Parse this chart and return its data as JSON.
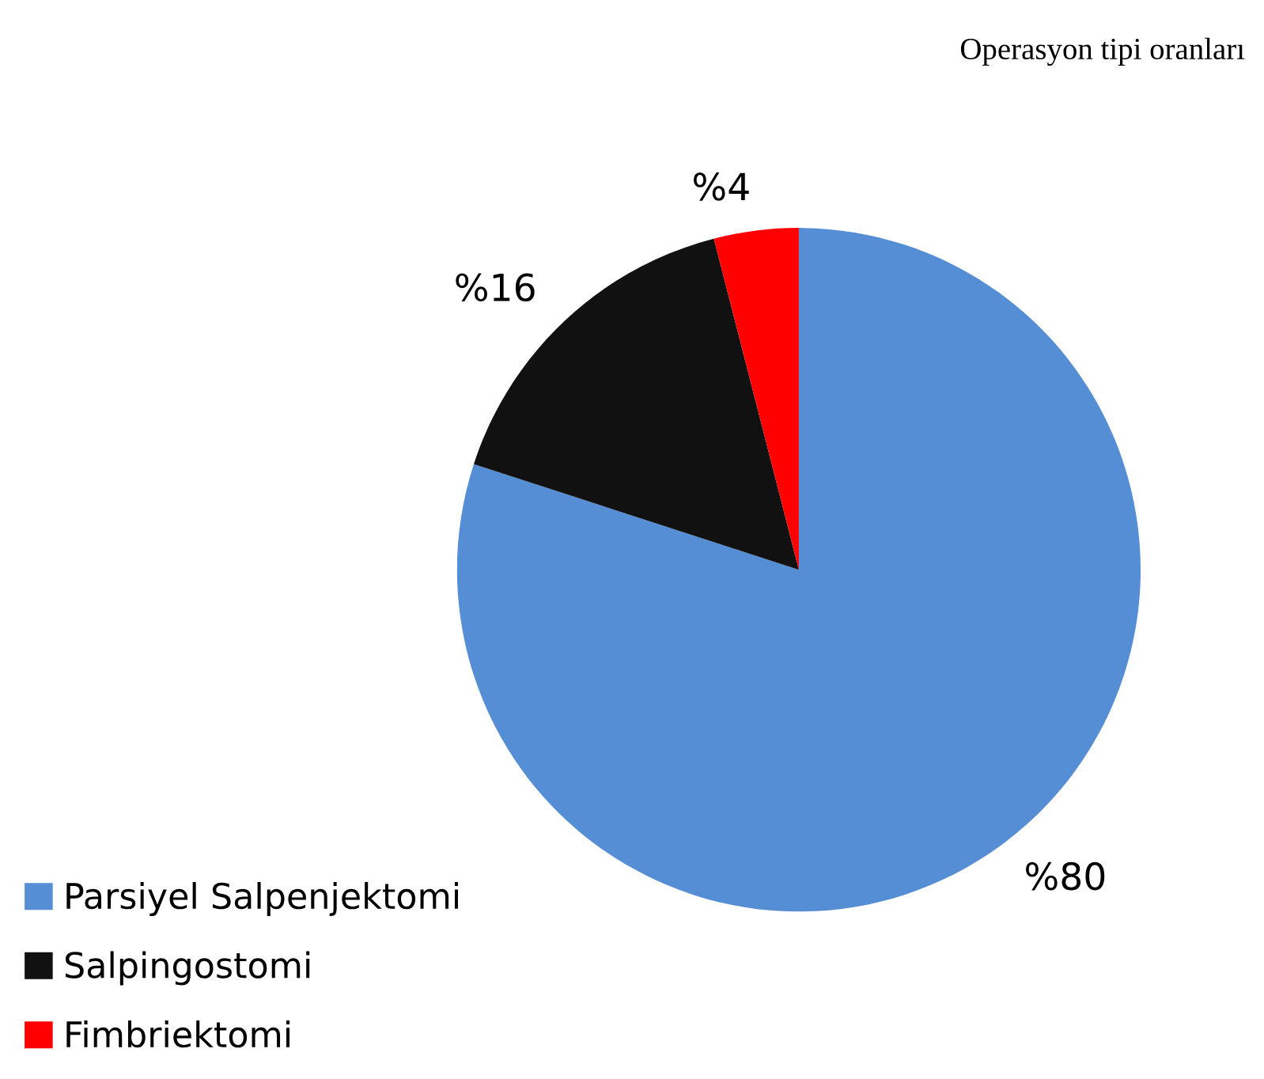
{
  "chart_data": {
    "type": "pie",
    "title": "Operasyon tipi oranları",
    "categories": [
      "Parsiyel Salpenjektomi",
      "Salpingostomi",
      "Fimbriektomi"
    ],
    "values": [
      80,
      16,
      4
    ],
    "colors": [
      "#558ed5",
      "#111111",
      "#ff0000"
    ],
    "value_labels": [
      "%80",
      "%16",
      "%4"
    ],
    "legend": "bottom left"
  }
}
